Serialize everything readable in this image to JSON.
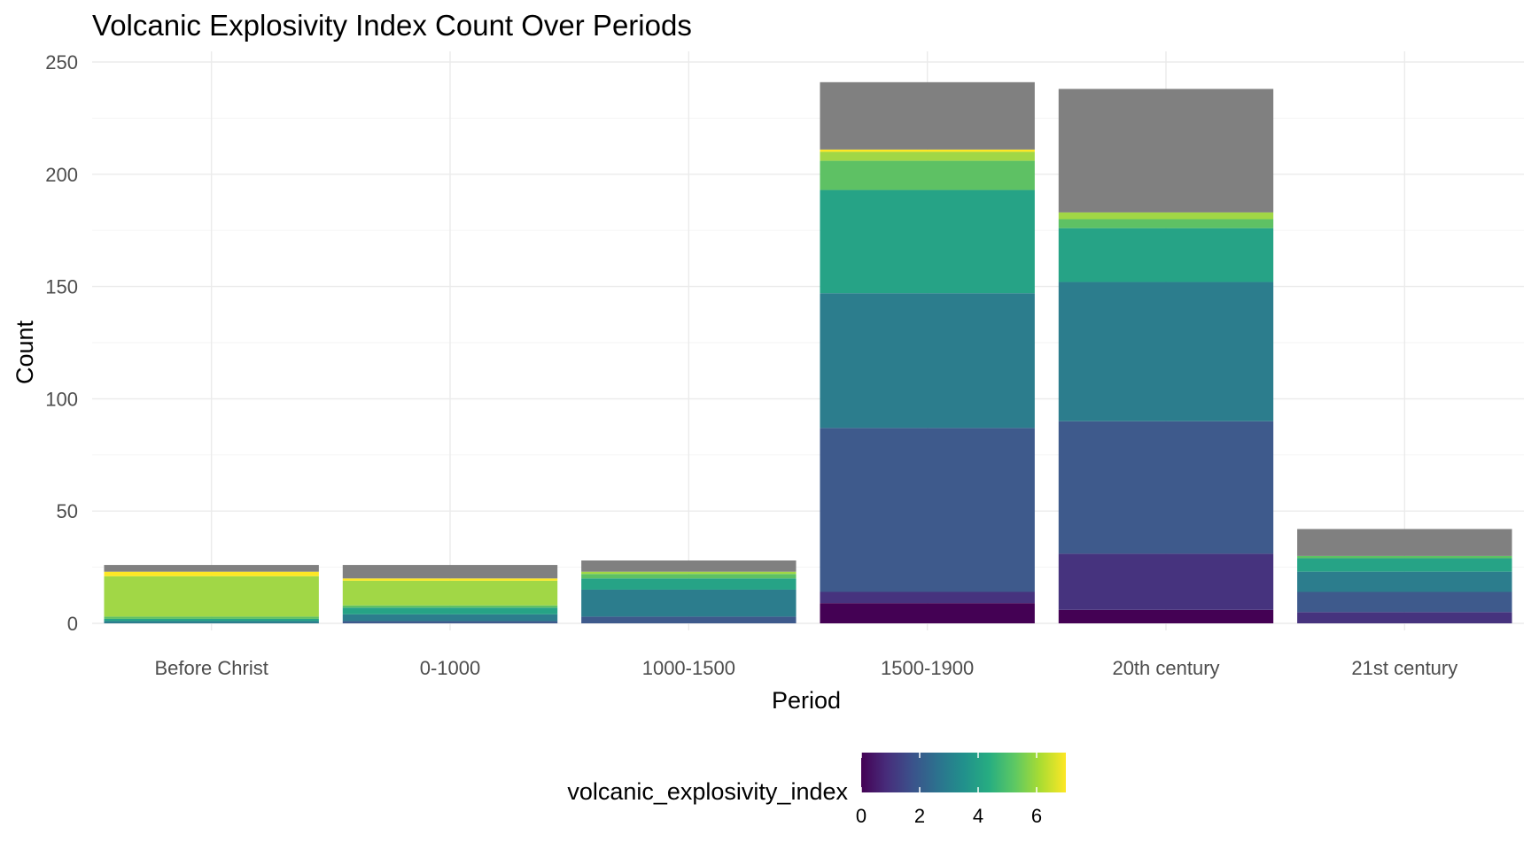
{
  "chart_data": {
    "type": "bar",
    "stacked": true,
    "title": "Volcanic Explosivity Index Count Over Periods",
    "xlabel": "Period",
    "ylabel": "Count",
    "ylim": [
      0,
      260
    ],
    "y_ticks": [
      0,
      50,
      100,
      150,
      200,
      250
    ],
    "grid": true,
    "categories": [
      "Before Christ",
      "0-1000",
      "1000-1500",
      "1500-1900",
      "20th century",
      "21st century"
    ],
    "stack_order_bottom_to_top": [
      "0",
      "1",
      "2",
      "3",
      "4",
      "5",
      "6",
      "7",
      "NA"
    ],
    "segments": [
      {
        "vei": 0,
        "values": [
          0,
          0,
          0,
          9,
          6,
          0
        ]
      },
      {
        "vei": 1,
        "values": [
          0,
          0,
          0,
          5,
          25,
          5
        ]
      },
      {
        "vei": 2,
        "values": [
          0,
          1,
          3,
          73,
          59,
          9
        ]
      },
      {
        "vei": 3,
        "values": [
          1,
          3,
          12,
          60,
          62,
          9
        ]
      },
      {
        "vei": 4,
        "values": [
          1,
          3,
          5,
          46,
          24,
          6
        ]
      },
      {
        "vei": 5,
        "values": [
          1,
          1,
          2,
          13,
          4,
          1
        ]
      },
      {
        "vei": 6,
        "values": [
          18,
          11,
          1,
          4,
          3,
          0
        ]
      },
      {
        "vei": 7,
        "values": [
          2,
          1,
          0,
          1,
          0,
          0
        ]
      },
      {
        "vei": "NA",
        "values": [
          3,
          6,
          5,
          30,
          55,
          12
        ]
      }
    ],
    "colors": {
      "0": "#440154",
      "1": "#46337E",
      "2": "#3E5A8C",
      "3": "#2C7D8D",
      "4": "#26A386",
      "5": "#5EC164",
      "6": "#A1D746",
      "7": "#FDE725",
      "NA": "#808080"
    },
    "legend": {
      "title": "volcanic_explosivity_index",
      "type": "colorbar",
      "position": "bottom",
      "range": [
        0,
        7
      ],
      "ticks": [
        0,
        2,
        4,
        6
      ],
      "gradient": [
        "#440154",
        "#472D7B",
        "#3B528B",
        "#2C728E",
        "#21908C",
        "#27AD81",
        "#5DC863",
        "#AADC32",
        "#FDE725"
      ]
    }
  }
}
